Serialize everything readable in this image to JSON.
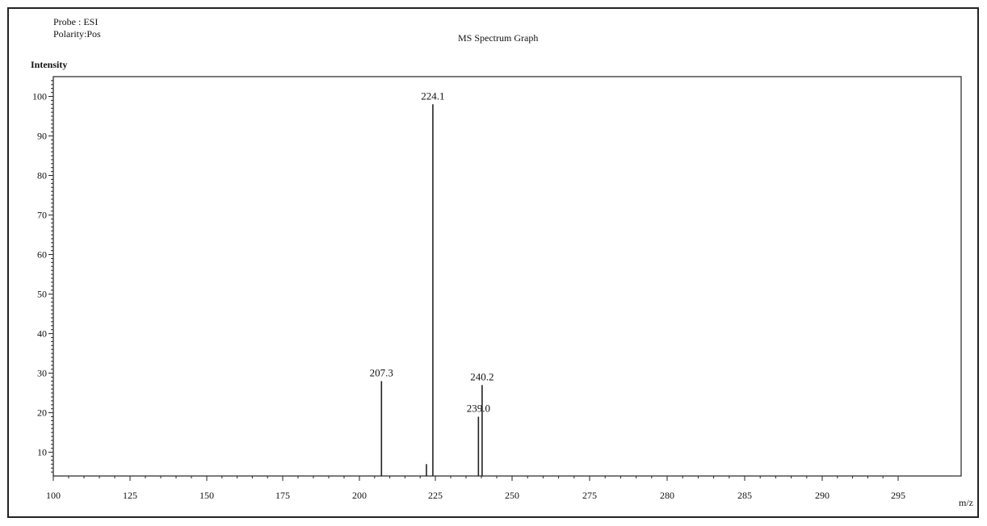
{
  "header": {
    "probe": "Probe : ESI",
    "polarity": "Polarity:Pos",
    "title": "MS Spectrum Graph"
  },
  "chart_data": {
    "type": "bar",
    "title": "MS Spectrum Graph",
    "ylabel": "Intensity",
    "xlabel": "m/z",
    "ylim": [
      4,
      105
    ],
    "yticks": [
      10,
      20,
      30,
      40,
      50,
      60,
      70,
      80,
      90,
      100
    ],
    "xticks": [
      "100",
      "125",
      "150",
      "175",
      "200",
      "225",
      "250",
      "275",
      "280",
      "285",
      "290",
      "295"
    ],
    "grid": false,
    "series": [
      {
        "x": [
          207.3,
          222.0,
          224.1,
          239.0,
          240.2
        ],
        "values": [
          28,
          7,
          98,
          19,
          27
        ],
        "labels": [
          "207.3",
          "",
          "224.1",
          "239.0",
          "240.2"
        ]
      }
    ],
    "colors": {
      "line": "#222222"
    }
  }
}
